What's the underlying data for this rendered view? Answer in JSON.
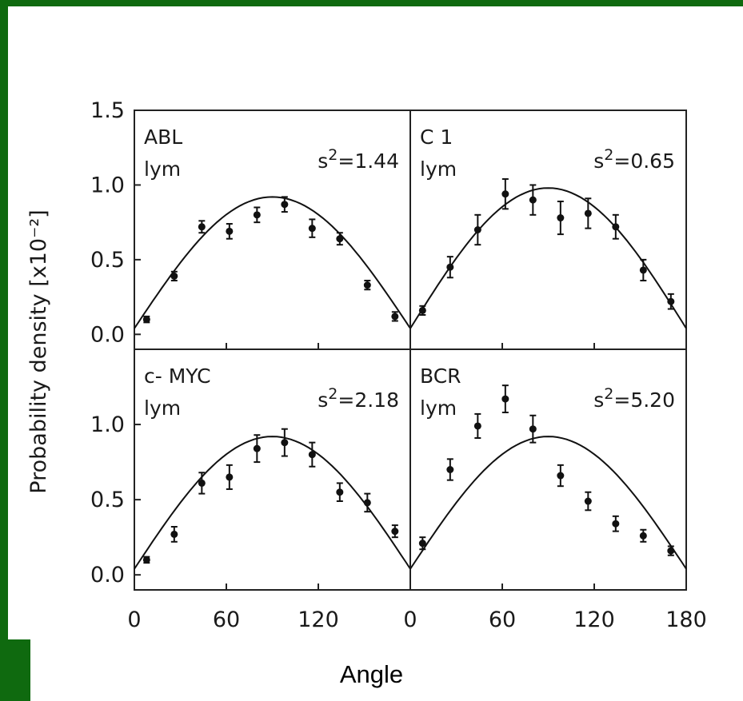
{
  "figure": {
    "x_axis_label": "Angle",
    "y_axis_label": "Probability density [x10⁻²]"
  },
  "chart_data": [
    {
      "type": "scatter",
      "panel": "top-left",
      "label_line1": "ABL",
      "label_line2": "lym",
      "s2_value": "1.44",
      "xlim": [
        0,
        180
      ],
      "ylim": [
        -0.1,
        1.5
      ],
      "x_ticks": [
        "0",
        "60",
        "120"
      ],
      "y_ticks": [
        "0.0",
        "0.5",
        "1.0",
        "1.5"
      ],
      "points": [
        {
          "x": 8,
          "y": 0.1,
          "err": 0.02
        },
        {
          "x": 26,
          "y": 0.39,
          "err": 0.03
        },
        {
          "x": 44,
          "y": 0.72,
          "err": 0.04
        },
        {
          "x": 62,
          "y": 0.69,
          "err": 0.05
        },
        {
          "x": 80,
          "y": 0.8,
          "err": 0.05
        },
        {
          "x": 98,
          "y": 0.87,
          "err": 0.05
        },
        {
          "x": 116,
          "y": 0.71,
          "err": 0.06
        },
        {
          "x": 134,
          "y": 0.64,
          "err": 0.04
        },
        {
          "x": 152,
          "y": 0.33,
          "err": 0.03
        },
        {
          "x": 170,
          "y": 0.12,
          "err": 0.03
        }
      ],
      "curve_peak": 0.88
    },
    {
      "type": "scatter",
      "panel": "top-right",
      "label_line1": "C 1",
      "label_line2": "lym",
      "s2_value": "0.65",
      "xlim": [
        0,
        180
      ],
      "ylim": [
        -0.1,
        1.5
      ],
      "x_ticks": [
        "0",
        "60",
        "120",
        "180"
      ],
      "y_ticks": [],
      "points": [
        {
          "x": 8,
          "y": 0.16,
          "err": 0.03
        },
        {
          "x": 26,
          "y": 0.45,
          "err": 0.07
        },
        {
          "x": 44,
          "y": 0.7,
          "err": 0.1
        },
        {
          "x": 62,
          "y": 0.94,
          "err": 0.1
        },
        {
          "x": 80,
          "y": 0.9,
          "err": 0.1
        },
        {
          "x": 98,
          "y": 0.78,
          "err": 0.11
        },
        {
          "x": 116,
          "y": 0.81,
          "err": 0.1
        },
        {
          "x": 134,
          "y": 0.72,
          "err": 0.08
        },
        {
          "x": 152,
          "y": 0.43,
          "err": 0.07
        },
        {
          "x": 170,
          "y": 0.22,
          "err": 0.05
        }
      ],
      "curve_peak": 0.94
    },
    {
      "type": "scatter",
      "panel": "bottom-left",
      "label_line1": "c- MYC",
      "label_line2": "lym",
      "s2_value": "2.18",
      "xlim": [
        0,
        180
      ],
      "ylim": [
        -0.1,
        1.5
      ],
      "x_ticks": [
        "0",
        "60",
        "120"
      ],
      "y_ticks": [
        "0.0",
        "0.5",
        "1.0"
      ],
      "points": [
        {
          "x": 8,
          "y": 0.1,
          "err": 0.02
        },
        {
          "x": 26,
          "y": 0.27,
          "err": 0.05
        },
        {
          "x": 44,
          "y": 0.61,
          "err": 0.07
        },
        {
          "x": 62,
          "y": 0.65,
          "err": 0.08
        },
        {
          "x": 80,
          "y": 0.84,
          "err": 0.09
        },
        {
          "x": 98,
          "y": 0.88,
          "err": 0.09
        },
        {
          "x": 116,
          "y": 0.8,
          "err": 0.08
        },
        {
          "x": 134,
          "y": 0.55,
          "err": 0.06
        },
        {
          "x": 152,
          "y": 0.48,
          "err": 0.06
        },
        {
          "x": 170,
          "y": 0.29,
          "err": 0.04
        }
      ],
      "curve_peak": 0.88
    },
    {
      "type": "scatter",
      "panel": "bottom-right",
      "label_line1": "BCR",
      "label_line2": "lym",
      "s2_value": "5.20",
      "xlim": [
        0,
        180
      ],
      "ylim": [
        -0.1,
        1.5
      ],
      "x_ticks": [
        "0",
        "60",
        "120",
        "180"
      ],
      "y_ticks": [],
      "points": [
        {
          "x": 8,
          "y": 0.21,
          "err": 0.04
        },
        {
          "x": 26,
          "y": 0.7,
          "err": 0.07
        },
        {
          "x": 44,
          "y": 0.99,
          "err": 0.08
        },
        {
          "x": 62,
          "y": 1.17,
          "err": 0.09
        },
        {
          "x": 80,
          "y": 0.97,
          "err": 0.09
        },
        {
          "x": 98,
          "y": 0.66,
          "err": 0.07
        },
        {
          "x": 116,
          "y": 0.49,
          "err": 0.06
        },
        {
          "x": 134,
          "y": 0.34,
          "err": 0.05
        },
        {
          "x": 152,
          "y": 0.26,
          "err": 0.04
        },
        {
          "x": 170,
          "y": 0.16,
          "err": 0.03
        }
      ],
      "curve_peak": 0.88
    }
  ]
}
